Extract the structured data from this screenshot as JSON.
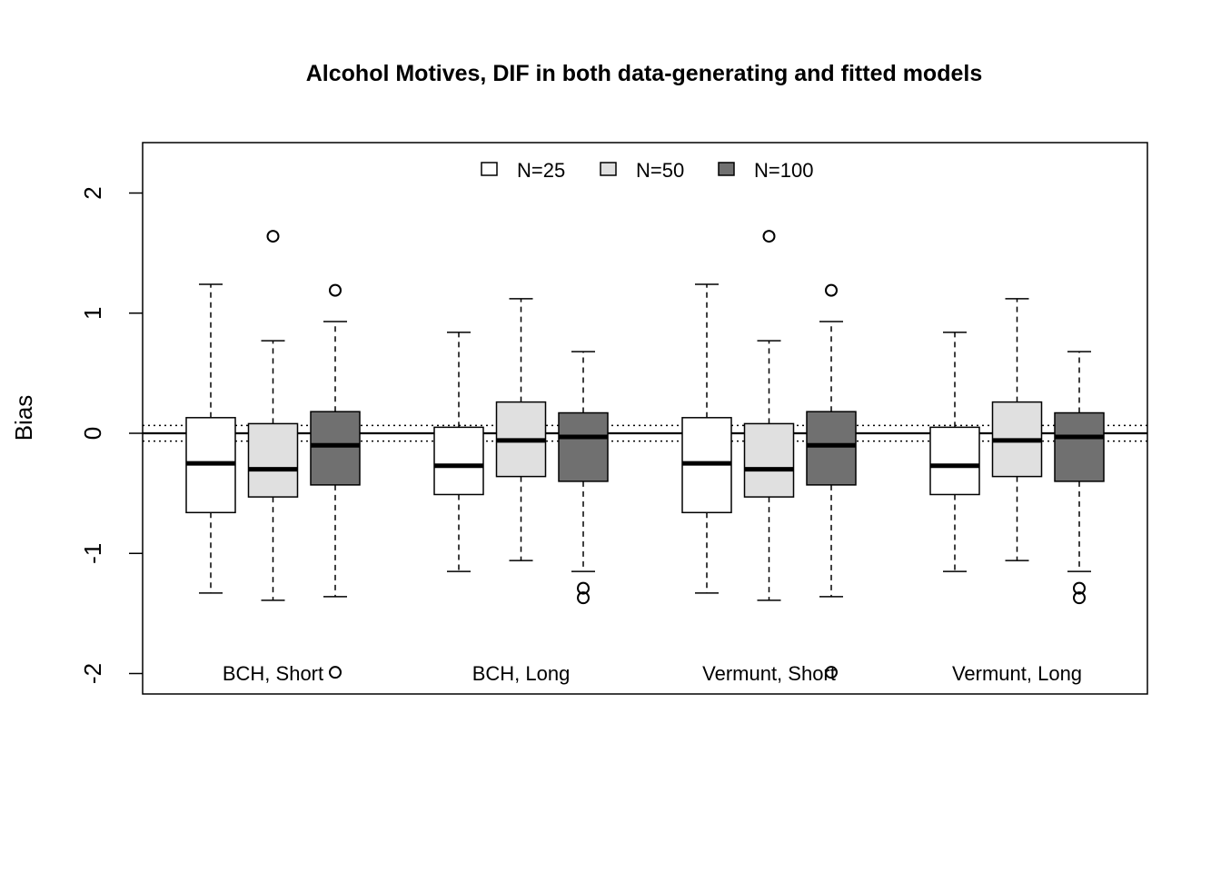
{
  "chart_data": {
    "type": "boxplot",
    "title": "Alcohol Motives, DIF in both data-generating and fitted models",
    "ylabel": "Bias",
    "xlabel": "",
    "ylim": [
      -2.4,
      2.2
    ],
    "yticks": [
      -2,
      -1,
      0,
      1,
      2
    ],
    "yticklabels": [
      "-2",
      "-1",
      "0",
      "1",
      "2"
    ],
    "reference_lines": {
      "solid": 0,
      "dotted": [
        0.065,
        -0.065
      ]
    },
    "legend": {
      "position": "top",
      "entries": [
        {
          "name": "N=25",
          "fill": "#ffffff"
        },
        {
          "name": "N=50",
          "fill": "#e0e0e0"
        },
        {
          "name": "N=100",
          "fill": "#707070"
        }
      ]
    },
    "groups": [
      {
        "label": "BCH, Short",
        "boxes": [
          {
            "series": "N=25",
            "whisker_low": -1.33,
            "q1": -0.66,
            "median": -0.25,
            "q3": 0.13,
            "whisker_high": 1.24,
            "outliers": []
          },
          {
            "series": "N=50",
            "whisker_low": -1.39,
            "q1": -0.53,
            "median": -0.3,
            "q3": 0.08,
            "whisker_high": 0.77,
            "outliers": [
              1.64
            ]
          },
          {
            "series": "N=100",
            "whisker_low": -1.36,
            "q1": -0.43,
            "median": -0.1,
            "q3": 0.18,
            "whisker_high": 0.93,
            "outliers": [
              1.19,
              -1.99
            ]
          }
        ]
      },
      {
        "label": "BCH, Long",
        "boxes": [
          {
            "series": "N=25",
            "whisker_low": -1.15,
            "q1": -0.51,
            "median": -0.27,
            "q3": 0.05,
            "whisker_high": 0.84,
            "outliers": []
          },
          {
            "series": "N=50",
            "whisker_low": -1.06,
            "q1": -0.36,
            "median": -0.06,
            "q3": 0.26,
            "whisker_high": 1.12,
            "outliers": []
          },
          {
            "series": "N=100",
            "whisker_low": -1.15,
            "q1": -0.4,
            "median": -0.03,
            "q3": 0.17,
            "whisker_high": 0.68,
            "outliers": [
              -1.29,
              -1.37
            ]
          }
        ]
      },
      {
        "label": "Vermunt, Short",
        "boxes": [
          {
            "series": "N=25",
            "whisker_low": -1.33,
            "q1": -0.66,
            "median": -0.25,
            "q3": 0.13,
            "whisker_high": 1.24,
            "outliers": []
          },
          {
            "series": "N=50",
            "whisker_low": -1.39,
            "q1": -0.53,
            "median": -0.3,
            "q3": 0.08,
            "whisker_high": 0.77,
            "outliers": [
              1.64
            ]
          },
          {
            "series": "N=100",
            "whisker_low": -1.36,
            "q1": -0.43,
            "median": -0.1,
            "q3": 0.18,
            "whisker_high": 0.93,
            "outliers": [
              1.19,
              -1.99
            ]
          }
        ]
      },
      {
        "label": "Vermunt, Long",
        "boxes": [
          {
            "series": "N=25",
            "whisker_low": -1.15,
            "q1": -0.51,
            "median": -0.27,
            "q3": 0.05,
            "whisker_high": 0.84,
            "outliers": []
          },
          {
            "series": "N=50",
            "whisker_low": -1.06,
            "q1": -0.36,
            "median": -0.06,
            "q3": 0.26,
            "whisker_high": 1.12,
            "outliers": []
          },
          {
            "series": "N=100",
            "whisker_low": -1.15,
            "q1": -0.4,
            "median": -0.03,
            "q3": 0.17,
            "whisker_high": 0.68,
            "outliers": [
              -1.29,
              -1.37
            ]
          }
        ]
      }
    ]
  }
}
